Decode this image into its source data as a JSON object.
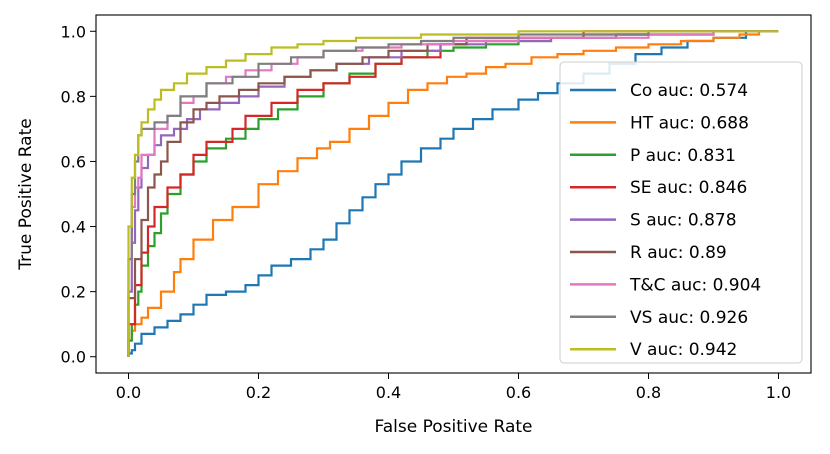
{
  "chart_data": {
    "type": "line",
    "title": "",
    "xlabel": "False Positive Rate",
    "ylabel": "True Positive Rate",
    "xlim": [
      -0.05,
      1.05
    ],
    "ylim": [
      -0.05,
      1.05
    ],
    "xticks": [
      0.0,
      0.2,
      0.4,
      0.6,
      0.8,
      1.0
    ],
    "yticks": [
      0.0,
      0.2,
      0.4,
      0.6,
      0.8,
      1.0
    ],
    "xtick_labels": [
      "0.0",
      "0.2",
      "0.4",
      "0.6",
      "0.8",
      "1.0"
    ],
    "ytick_labels": [
      "0.0",
      "0.2",
      "0.4",
      "0.6",
      "0.8",
      "1.0"
    ],
    "grid": false,
    "legend_position": "right",
    "series": [
      {
        "name": "Co auc: 0.574",
        "color": "#1f77b4",
        "x": [
          0,
          0.005,
          0.01,
          0.02,
          0.04,
          0.06,
          0.08,
          0.1,
          0.12,
          0.15,
          0.18,
          0.2,
          0.22,
          0.25,
          0.28,
          0.3,
          0.32,
          0.34,
          0.36,
          0.38,
          0.4,
          0.42,
          0.45,
          0.48,
          0.5,
          0.53,
          0.56,
          0.6,
          0.63,
          0.66,
          0.7,
          0.74,
          0.78,
          0.82,
          0.86,
          0.9,
          0.95,
          1.0
        ],
        "y": [
          0,
          0.01,
          0.02,
          0.04,
          0.07,
          0.09,
          0.11,
          0.13,
          0.16,
          0.19,
          0.2,
          0.22,
          0.25,
          0.28,
          0.3,
          0.33,
          0.36,
          0.41,
          0.45,
          0.49,
          0.53,
          0.56,
          0.6,
          0.64,
          0.67,
          0.7,
          0.73,
          0.76,
          0.79,
          0.81,
          0.84,
          0.87,
          0.9,
          0.93,
          0.95,
          0.97,
          0.98,
          1.0
        ]
      },
      {
        "name": "HT auc: 0.688",
        "color": "#ff7f0e",
        "x": [
          0,
          0.005,
          0.01,
          0.02,
          0.03,
          0.05,
          0.07,
          0.08,
          0.1,
          0.13,
          0.16,
          0.2,
          0.23,
          0.26,
          0.29,
          0.31,
          0.34,
          0.37,
          0.4,
          0.43,
          0.46,
          0.49,
          0.52,
          0.55,
          0.58,
          0.62,
          0.66,
          0.7,
          0.75,
          0.8,
          0.85,
          0.9,
          0.94,
          0.97,
          1.0
        ],
        "y": [
          0,
          0.05,
          0.08,
          0.1,
          0.12,
          0.15,
          0.2,
          0.26,
          0.3,
          0.36,
          0.42,
          0.46,
          0.53,
          0.57,
          0.61,
          0.64,
          0.66,
          0.7,
          0.74,
          0.78,
          0.82,
          0.84,
          0.86,
          0.87,
          0.89,
          0.9,
          0.92,
          0.93,
          0.94,
          0.95,
          0.96,
          0.97,
          0.98,
          0.99,
          1.0
        ]
      },
      {
        "name": "P auc: 0.831",
        "color": "#2ca02c",
        "x": [
          0,
          0.005,
          0.01,
          0.015,
          0.02,
          0.03,
          0.04,
          0.05,
          0.06,
          0.08,
          0.1,
          0.12,
          0.15,
          0.18,
          0.2,
          0.23,
          0.26,
          0.3,
          0.34,
          0.38,
          0.42,
          0.46,
          0.5,
          0.55,
          0.6,
          0.65,
          0.7,
          0.75,
          0.8,
          0.85,
          0.9,
          0.95,
          1.0
        ],
        "y": [
          0,
          0.05,
          0.1,
          0.16,
          0.2,
          0.28,
          0.34,
          0.38,
          0.44,
          0.5,
          0.56,
          0.6,
          0.64,
          0.67,
          0.7,
          0.73,
          0.76,
          0.8,
          0.84,
          0.87,
          0.9,
          0.92,
          0.94,
          0.95,
          0.96,
          0.97,
          0.98,
          0.98,
          0.99,
          0.99,
          0.99,
          1.0,
          1.0
        ]
      },
      {
        "name": "SE auc: 0.846",
        "color": "#d62728",
        "x": [
          0,
          0.01,
          0.02,
          0.03,
          0.04,
          0.06,
          0.08,
          0.1,
          0.12,
          0.16,
          0.18,
          0.22,
          0.26,
          0.3,
          0.34,
          0.38,
          0.42,
          0.48,
          0.52,
          0.6,
          0.7,
          1.0
        ],
        "y": [
          0,
          0.1,
          0.22,
          0.32,
          0.4,
          0.46,
          0.52,
          0.56,
          0.62,
          0.66,
          0.7,
          0.74,
          0.78,
          0.82,
          0.84,
          0.86,
          0.9,
          0.92,
          0.96,
          0.98,
          0.98,
          1.0
        ]
      },
      {
        "name": "S auc: 0.878",
        "color": "#9467bd",
        "x": [
          0,
          0.005,
          0.01,
          0.015,
          0.02,
          0.03,
          0.04,
          0.05,
          0.07,
          0.09,
          0.11,
          0.14,
          0.17,
          0.2,
          0.24,
          0.28,
          0.32,
          0.37,
          0.42,
          0.48,
          0.55,
          0.65,
          0.75,
          0.9,
          1.0
        ],
        "y": [
          0,
          0.2,
          0.35,
          0.45,
          0.52,
          0.58,
          0.62,
          0.65,
          0.68,
          0.7,
          0.73,
          0.76,
          0.78,
          0.8,
          0.83,
          0.86,
          0.88,
          0.9,
          0.92,
          0.94,
          0.96,
          0.97,
          0.98,
          0.99,
          1.0
        ]
      },
      {
        "name": "R auc: 0.89",
        "color": "#8c564b",
        "x": [
          0,
          0.01,
          0.02,
          0.03,
          0.04,
          0.05,
          0.06,
          0.08,
          0.1,
          0.12,
          0.14,
          0.17,
          0.2,
          0.24,
          0.28,
          0.32,
          0.36,
          0.4,
          0.46,
          0.52,
          0.6,
          0.7,
          0.8,
          1.0
        ],
        "y": [
          0,
          0.18,
          0.3,
          0.42,
          0.52,
          0.56,
          0.6,
          0.66,
          0.72,
          0.76,
          0.78,
          0.8,
          0.82,
          0.84,
          0.86,
          0.88,
          0.9,
          0.92,
          0.94,
          0.96,
          0.97,
          0.98,
          0.99,
          1.0
        ]
      },
      {
        "name": "T&C auc: 0.904",
        "color": "#e377c2",
        "x": [
          0,
          0.005,
          0.01,
          0.015,
          0.02,
          0.04,
          0.06,
          0.08,
          0.1,
          0.12,
          0.15,
          0.18,
          0.22,
          0.26,
          0.3,
          0.36,
          0.42,
          0.5,
          0.6,
          0.7,
          0.8,
          0.9,
          1.0
        ],
        "y": [
          0,
          0.3,
          0.46,
          0.52,
          0.55,
          0.62,
          0.7,
          0.74,
          0.78,
          0.8,
          0.84,
          0.86,
          0.88,
          0.9,
          0.92,
          0.94,
          0.95,
          0.96,
          0.97,
          0.98,
          0.98,
          0.99,
          1.0
        ]
      },
      {
        "name": "VS auc: 0.926",
        "color": "#7f7f7f",
        "x": [
          0,
          0.005,
          0.01,
          0.015,
          0.02,
          0.04,
          0.06,
          0.08,
          0.12,
          0.16,
          0.2,
          0.25,
          0.3,
          0.35,
          0.4,
          0.45,
          0.5,
          0.6,
          0.7,
          0.8,
          1.0
        ],
        "y": [
          0,
          0.3,
          0.5,
          0.6,
          0.68,
          0.7,
          0.72,
          0.74,
          0.8,
          0.84,
          0.86,
          0.9,
          0.92,
          0.94,
          0.95,
          0.96,
          0.97,
          0.98,
          0.99,
          0.99,
          1.0
        ]
      },
      {
        "name": "V auc: 0.942",
        "color": "#bcbd22",
        "x": [
          0,
          0.005,
          0.01,
          0.015,
          0.02,
          0.03,
          0.04,
          0.05,
          0.07,
          0.09,
          0.12,
          0.15,
          0.18,
          0.22,
          0.26,
          0.3,
          0.35,
          0.4,
          0.45,
          0.5,
          0.6,
          0.7,
          0.8,
          0.9,
          1.0
        ],
        "y": [
          0,
          0.4,
          0.55,
          0.62,
          0.68,
          0.72,
          0.76,
          0.79,
          0.82,
          0.84,
          0.87,
          0.89,
          0.91,
          0.93,
          0.95,
          0.96,
          0.97,
          0.98,
          0.98,
          0.99,
          0.99,
          1.0,
          1.0,
          1.0,
          1.0
        ]
      }
    ]
  }
}
